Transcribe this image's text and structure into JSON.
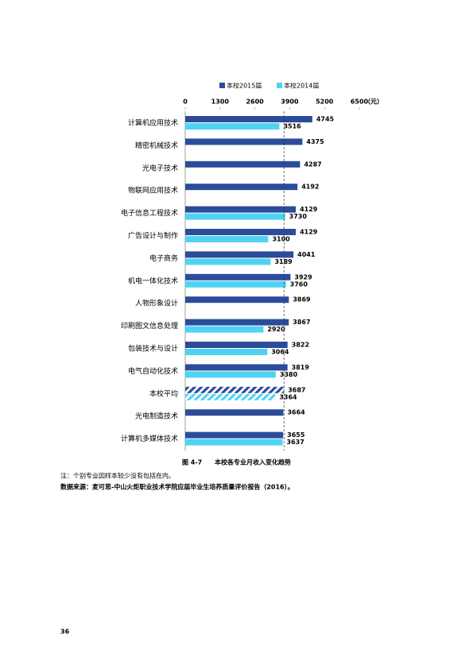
{
  "chart_data": {
    "type": "bar",
    "orientation": "horizontal",
    "caption_number": "图 4-7",
    "caption": "本校各专业月收入变化趋势",
    "x_unit": "（元）",
    "xlim": [
      0,
      6500
    ],
    "xticks": [
      0,
      1300,
      2600,
      3900,
      5200,
      6500
    ],
    "categories": [
      "计算机应用技术",
      "精密机械技术",
      "光电子技术",
      "物联网应用技术",
      "电子信息工程技术",
      "广告设计与制作",
      "电子商务",
      "机电一体化技术",
      "人物形象设计",
      "印刷图文信息处理",
      "包装技术与设计",
      "电气自动化技术",
      "本校平均",
      "光电制造技术",
      "计算机多媒体技术"
    ],
    "hatched_category": "本校平均",
    "legend_position": "top",
    "series": [
      {
        "name": "本校2015届",
        "color": "#2b4c9b",
        "values": [
          4745,
          4375,
          4287,
          4192,
          4129,
          4129,
          4041,
          3929,
          3869,
          3867,
          3822,
          3819,
          3687,
          3664,
          3655
        ]
      },
      {
        "name": "本校2014届",
        "color": "#4fd3f2",
        "values": [
          3516,
          null,
          null,
          null,
          3730,
          3100,
          3189,
          3760,
          null,
          2920,
          3064,
          3380,
          3364,
          null,
          3637
        ]
      }
    ]
  },
  "notes": [
    "注：个别专业因样本较少没有包括在内。",
    "数据来源：麦可思-中山火炬职业技术学院应届毕业生培养质量评价报告（2016）。"
  ],
  "page_number": "36"
}
